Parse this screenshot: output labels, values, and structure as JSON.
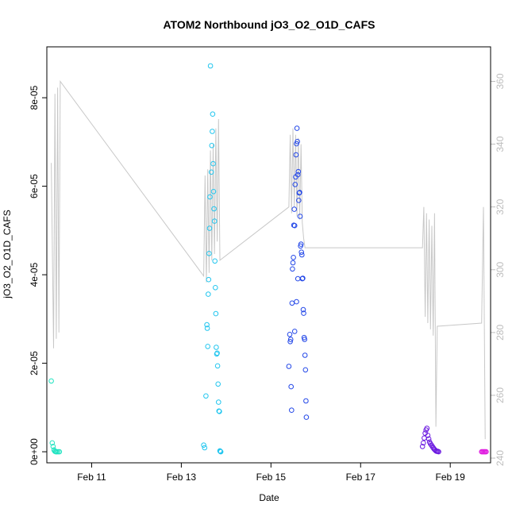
{
  "chart_data": {
    "type": "scatter",
    "title": "ATOM2 Northbound jO3_O2_O1D_CAFS",
    "xlabel": "Date",
    "ylabel": "jO3_O2_O1D_CAFS",
    "x_axis": {
      "unit": "day of February",
      "lim": [
        10.0,
        19.9
      ],
      "ticks": [
        11,
        13,
        15,
        17,
        19
      ],
      "tick_labels": [
        "Feb 11",
        "Feb 13",
        "Feb 15",
        "Feb 17",
        "Feb 19"
      ]
    },
    "y_axis": {
      "lim": [
        -2.5e-06,
        9.15e-05
      ],
      "ticks": [
        0,
        2e-05,
        4e-05,
        6e-05,
        8e-05
      ],
      "tick_labels": [
        "0e+00",
        "2e-05",
        "4e-05",
        "6e-05",
        "8e-05"
      ]
    },
    "y2_axis": {
      "lim": [
        238.5,
        371
      ],
      "ticks": [
        240,
        260,
        280,
        300,
        320,
        340,
        360
      ],
      "tick_labels": [
        "240",
        "260",
        "280",
        "300",
        "320",
        "340",
        "360"
      ]
    },
    "colors": {
      "line": "#c8c8c8",
      "right_axis": "#bdbdbd",
      "group1": "#1de3c0",
      "group2": "#22c6ef",
      "group3": "#2448e8",
      "group4": "#6a18e0",
      "group5": "#e020e0"
    },
    "series": [
      {
        "color": "#1de3c0",
        "points": [
          [
            10.1,
            1.6e-05
          ],
          [
            10.12,
            2e-06
          ],
          [
            10.14,
            1.2e-06
          ],
          [
            10.16,
            4e-07
          ],
          [
            10.18,
            1e-07
          ],
          [
            10.2,
            0.0
          ],
          [
            10.22,
            0.0
          ],
          [
            10.25,
            0.0
          ],
          [
            10.28,
            0.0
          ]
        ]
      },
      {
        "color": "#22c6ef",
        "points": [
          [
            13.5,
            1.5e-06
          ],
          [
            13.52,
            9e-07
          ],
          [
            13.55,
            1.26e-05
          ],
          [
            13.57,
            2.87e-05
          ],
          [
            13.58,
            2.79e-05
          ],
          [
            13.59,
            2.38e-05
          ],
          [
            13.6,
            3.56e-05
          ],
          [
            13.61,
            3.89e-05
          ],
          [
            13.62,
            4.48e-05
          ],
          [
            13.63,
            5.05e-05
          ],
          [
            13.64,
            5.76e-05
          ],
          [
            13.65,
            8.72e-05
          ],
          [
            13.67,
            6.32e-05
          ],
          [
            13.68,
            6.92e-05
          ],
          [
            13.69,
            7.24e-05
          ],
          [
            13.7,
            7.63e-05
          ],
          [
            13.71,
            6.51e-05
          ],
          [
            13.72,
            5.88e-05
          ],
          [
            13.73,
            5.49e-05
          ],
          [
            13.74,
            5.21e-05
          ],
          [
            13.75,
            4.31e-05
          ],
          [
            13.76,
            3.71e-05
          ],
          [
            13.77,
            3.12e-05
          ],
          [
            13.78,
            2.36e-05
          ],
          [
            13.79,
            2.21e-05
          ],
          [
            13.8,
            2.23e-05
          ],
          [
            13.81,
            1.94e-05
          ],
          [
            13.82,
            1.53e-05
          ],
          [
            13.83,
            1.12e-05
          ],
          [
            13.84,
            9.2e-06
          ],
          [
            13.85,
            9.1e-06
          ],
          [
            13.86,
            2e-07
          ],
          [
            13.87,
            1e-07
          ],
          [
            13.88,
            0.0
          ]
        ]
      },
      {
        "color": "#2448e8",
        "points": [
          [
            15.4,
            1.93e-05
          ],
          [
            15.42,
            2.65e-05
          ],
          [
            15.43,
            2.49e-05
          ],
          [
            15.44,
            2.54e-05
          ],
          [
            15.45,
            1.47e-05
          ],
          [
            15.46,
            9.4e-06
          ],
          [
            15.47,
            3.36e-05
          ],
          [
            15.48,
            4.13e-05
          ],
          [
            15.49,
            4.27e-05
          ],
          [
            15.5,
            4.39e-05
          ],
          [
            15.51,
            5.12e-05
          ],
          [
            15.52,
            5.48e-05
          ],
          [
            15.53,
            5.11e-05
          ],
          [
            15.54,
            6.04e-05
          ],
          [
            15.55,
            6.21e-05
          ],
          [
            15.56,
            6.71e-05
          ],
          [
            15.57,
            6.96e-05
          ],
          [
            15.58,
            7.31e-05
          ],
          [
            15.59,
            7.01e-05
          ],
          [
            15.6,
            6.26e-05
          ],
          [
            15.61,
            6.33e-05
          ],
          [
            15.62,
            5.68e-05
          ],
          [
            15.63,
            5.85e-05
          ],
          [
            15.64,
            5.86e-05
          ],
          [
            15.65,
            5.32e-05
          ],
          [
            15.66,
            4.65e-05
          ],
          [
            15.67,
            4.69e-05
          ],
          [
            15.68,
            4.51e-05
          ],
          [
            15.69,
            4.45e-05
          ],
          [
            15.7,
            3.91e-05
          ],
          [
            15.71,
            3.92e-05
          ],
          [
            15.72,
            3.21e-05
          ],
          [
            15.73,
            3.13e-05
          ],
          [
            15.74,
            2.58e-05
          ],
          [
            15.75,
            2.54e-05
          ],
          [
            15.76,
            2.18e-05
          ],
          [
            15.77,
            1.85e-05
          ],
          [
            15.78,
            1.15e-05
          ],
          [
            15.79,
            7.8e-06
          ],
          [
            15.53,
            2.72e-05
          ],
          [
            15.57,
            3.39e-05
          ],
          [
            15.6,
            3.91e-05
          ]
        ]
      },
      {
        "color": "#6a18e0",
        "points": [
          [
            18.38,
            1.2e-06
          ],
          [
            18.4,
            2e-06
          ],
          [
            18.42,
            3.1e-06
          ],
          [
            18.44,
            4.2e-06
          ],
          [
            18.46,
            4.9e-06
          ],
          [
            18.48,
            5.3e-06
          ],
          [
            18.5,
            3.7e-06
          ],
          [
            18.52,
            2.9e-06
          ],
          [
            18.54,
            2.2e-06
          ],
          [
            18.56,
            1.8e-06
          ],
          [
            18.58,
            1.5e-06
          ],
          [
            18.6,
            1.2e-06
          ],
          [
            18.62,
            9e-07
          ],
          [
            18.64,
            6e-07
          ],
          [
            18.66,
            4e-07
          ],
          [
            18.68,
            2e-07
          ],
          [
            18.7,
            1e-07
          ],
          [
            18.72,
            1e-07
          ],
          [
            18.74,
            0.0
          ]
        ]
      },
      {
        "color": "#e020e0",
        "points": [
          [
            19.7,
            0.0
          ],
          [
            19.72,
            0.0
          ],
          [
            19.74,
            0.0
          ],
          [
            19.76,
            0.0
          ],
          [
            19.78,
            0.0
          ],
          [
            19.8,
            0.0
          ]
        ]
      }
    ],
    "line_series": {
      "axis": "y2",
      "color": "#c8c8c8",
      "points": [
        [
          10.1,
          334
        ],
        [
          10.15,
          275
        ],
        [
          10.18,
          356
        ],
        [
          10.21,
          278
        ],
        [
          10.24,
          358
        ],
        [
          10.27,
          280
        ],
        [
          10.3,
          360
        ],
        [
          13.5,
          298
        ],
        [
          13.53,
          330
        ],
        [
          13.56,
          296
        ],
        [
          13.59,
          332
        ],
        [
          13.62,
          299
        ],
        [
          13.65,
          338
        ],
        [
          13.68,
          303
        ],
        [
          13.71,
          340
        ],
        [
          13.74,
          305
        ],
        [
          13.77,
          345
        ],
        [
          13.8,
          309
        ],
        [
          13.83,
          348
        ],
        [
          13.86,
          303
        ],
        [
          15.4,
          320
        ],
        [
          15.43,
          343
        ],
        [
          15.46,
          318
        ],
        [
          15.49,
          345
        ],
        [
          15.52,
          320
        ],
        [
          15.55,
          343
        ],
        [
          15.58,
          317
        ],
        [
          15.61,
          342
        ],
        [
          15.64,
          316
        ],
        [
          15.67,
          340
        ],
        [
          15.7,
          315
        ],
        [
          15.73,
          310
        ],
        [
          15.76,
          307
        ],
        [
          18.38,
          307
        ],
        [
          18.41,
          320
        ],
        [
          18.44,
          285
        ],
        [
          18.47,
          318
        ],
        [
          18.5,
          283
        ],
        [
          18.53,
          316
        ],
        [
          18.56,
          281
        ],
        [
          18.59,
          314
        ],
        [
          18.62,
          279
        ],
        [
          18.65,
          318
        ],
        [
          18.68,
          250
        ],
        [
          18.71,
          282
        ],
        [
          19.7,
          283
        ],
        [
          19.74,
          320
        ],
        [
          19.78,
          246
        ]
      ]
    }
  }
}
